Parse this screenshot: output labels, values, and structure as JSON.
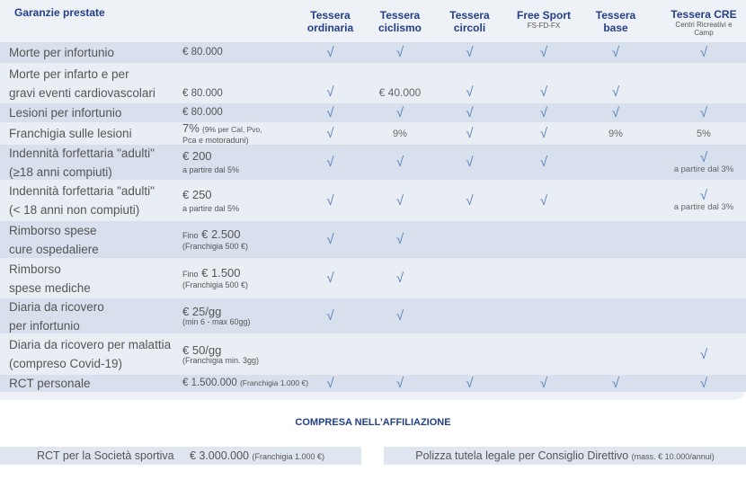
{
  "header": {
    "title": "Garanzie prestate",
    "columns": [
      {
        "title": "Tessera ordinaria",
        "sub": ""
      },
      {
        "title": "Tessera ciclismo",
        "sub": ""
      },
      {
        "title": "Tessera circoli",
        "sub": ""
      },
      {
        "title": "Free Sport",
        "sub": "FS-FD-FX"
      },
      {
        "title": "Tessera base",
        "sub": ""
      },
      {
        "title": "Tessera CRE",
        "sub": "Centri Ricreativi e Camp"
      }
    ]
  },
  "colors": {
    "accent": "#233f86",
    "check": "#5b7fb8",
    "row_dark": "#d7e0ec",
    "row_light": "#e9eef5"
  },
  "check_symbol": "√",
  "rows": [
    {
      "label": [
        "Morte per infortunio"
      ],
      "value": {
        "pre": "",
        "main": "€ 80.000",
        "inline": "",
        "sub": ""
      },
      "cells": [
        {
          "check": true
        },
        {
          "check": true
        },
        {
          "check": true
        },
        {
          "check": true
        },
        {
          "check": true
        },
        {
          "check": true
        }
      ]
    },
    {
      "label": [
        "Morte per infarto e per",
        "gravi eventi cardiovascolari"
      ],
      "value": {
        "pre": "",
        "main": "€ 80.000",
        "inline": "",
        "sub": ""
      },
      "cells": [
        {
          "check": true
        },
        {
          "text": "€ 40.000"
        },
        {
          "check": true
        },
        {
          "check": true
        },
        {
          "check": true
        },
        {}
      ]
    },
    {
      "label": [
        "Lesioni per infortunio"
      ],
      "value": {
        "pre": "",
        "main": "€ 80.000",
        "inline": "",
        "sub": ""
      },
      "cells": [
        {
          "check": true
        },
        {
          "check": true
        },
        {
          "check": true
        },
        {
          "check": true
        },
        {
          "check": true
        },
        {
          "check": true
        }
      ]
    },
    {
      "label": [
        "Franchigia sulle lesioni"
      ],
      "value": {
        "pre": "",
        "main": "7%",
        "inline": "(9% per Cal, Pvo,",
        "sub": "Pca e motoraduni)"
      },
      "cells": [
        {
          "check": true
        },
        {
          "text": "9%"
        },
        {
          "check": true
        },
        {
          "check": true
        },
        {
          "text": "9%"
        },
        {
          "text": "5%"
        }
      ]
    },
    {
      "label": [
        "Indennità forfettaria \"adulti\"",
        "(≥18 anni compiuti)"
      ],
      "value": {
        "pre": "",
        "main": "€ 200",
        "inline": "",
        "sub": "a partire dal 5%"
      },
      "cells": [
        {
          "check": true
        },
        {
          "check": true
        },
        {
          "check": true
        },
        {
          "check": true
        },
        {},
        {
          "check": true,
          "text": "a partire dal 3%"
        }
      ]
    },
    {
      "label": [
        "Indennità forfettaria \"adulti\"",
        "(< 18 anni non compiuti)"
      ],
      "value": {
        "pre": "",
        "main": "€ 250",
        "inline": "",
        "sub": "a partire dal 5%"
      },
      "cells": [
        {
          "check": true
        },
        {
          "check": true
        },
        {
          "check": true
        },
        {
          "check": true
        },
        {},
        {
          "check": true,
          "text": "a partire dal 3%"
        }
      ]
    },
    {
      "label": [
        "Rimborso spese",
        "cure ospedaliere"
      ],
      "value": {
        "pre": "Fino",
        "main": "€ 2.500",
        "inline": "",
        "sub": "(Franchigia 500 €)"
      },
      "cells": [
        {
          "check": true
        },
        {
          "check": true
        },
        {},
        {},
        {},
        {}
      ]
    },
    {
      "label": [
        "Rimborso",
        "spese mediche"
      ],
      "value": {
        "pre": "Fino",
        "main": "€ 1.500",
        "inline": "",
        "sub": "(Franchigia 500 €)"
      },
      "cells": [
        {
          "check": true
        },
        {
          "check": true
        },
        {},
        {},
        {},
        {}
      ]
    },
    {
      "label": [
        "Diaria da ricovero",
        "per infortunio"
      ],
      "value": {
        "pre": "",
        "main": "€ 25/gg",
        "inline": "",
        "sub": "(min 6 - max 60gg)"
      },
      "cells": [
        {
          "check": true
        },
        {
          "check": true
        },
        {},
        {},
        {},
        {}
      ]
    },
    {
      "label": [
        "Diaria da ricovero per malattia",
        "(compreso Covid-19)"
      ],
      "value": {
        "pre": "",
        "main": "€ 50/gg",
        "inline": "",
        "sub": "(Franchigia min. 3gg)"
      },
      "cells": [
        {},
        {},
        {},
        {},
        {},
        {
          "check": true
        }
      ]
    },
    {
      "label": [
        "RCT personale"
      ],
      "value": {
        "pre": "",
        "main": "€ 1.500.000",
        "inline": "(Franchigia 1.000 €)",
        "sub": ""
      },
      "cells": [
        {
          "check": true
        },
        {
          "check": true
        },
        {
          "check": true
        },
        {
          "check": true
        },
        {
          "check": true
        },
        {
          "check": true
        }
      ]
    }
  ],
  "included": {
    "title": "COMPRESA NELL’AFFILIAZIONE",
    "left": {
      "label": "RCT per la Società sportiva",
      "value": "€ 3.000.000",
      "note": "(Franchigia 1.000 €)"
    },
    "right": {
      "label": "Polizza tutela legale per Consiglio Direttivo",
      "note": "(mass. € 10.000/annui)"
    }
  }
}
